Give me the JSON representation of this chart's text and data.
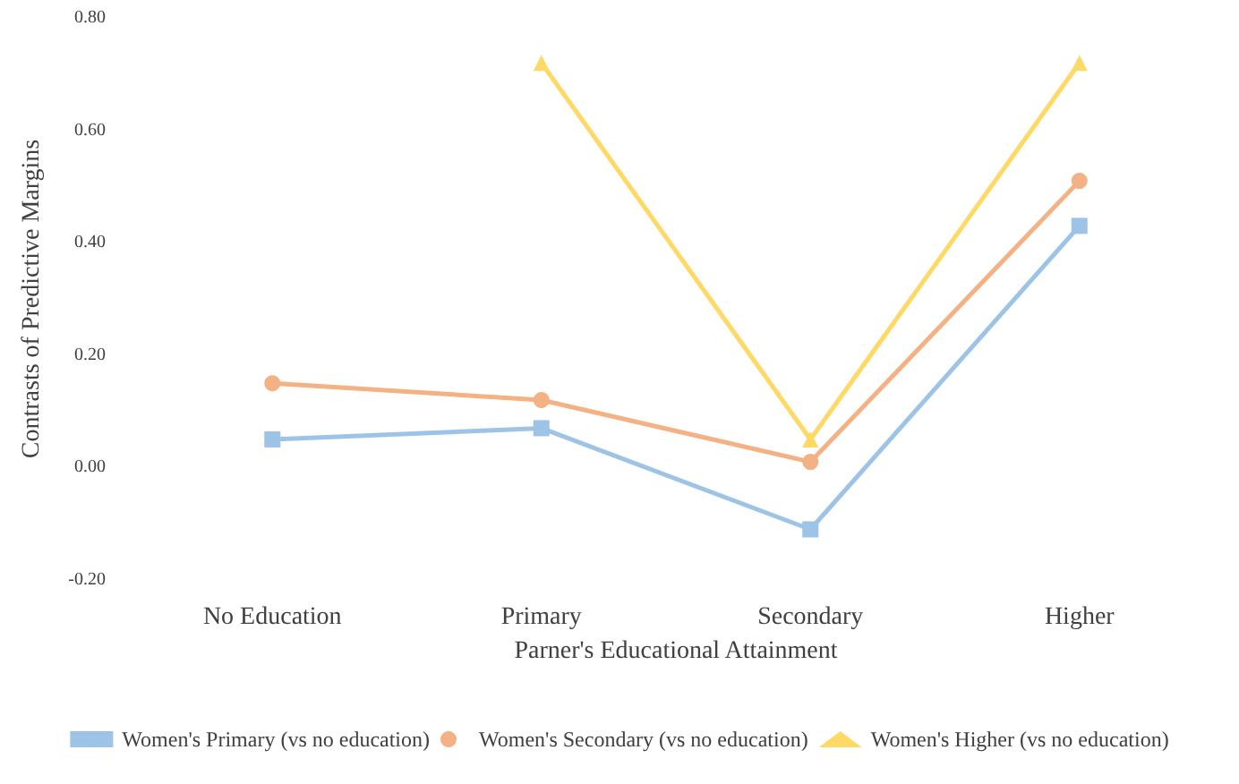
{
  "chart_data": {
    "type": "line",
    "xlabel": "Parner's Educational Attainment",
    "ylabel": "Contrasts of Predictive Margins",
    "categories": [
      "No Education",
      "Primary",
      "Secondary",
      "Higher"
    ],
    "series": [
      {
        "name": "Women's Primary (vs no education)",
        "color": "#9dc3e6",
        "marker": "square",
        "values": [
          0.05,
          0.07,
          -0.11,
          0.43
        ]
      },
      {
        "name": "Women's Secondary (vs no education)",
        "color": "#f4b183",
        "marker": "circle",
        "values": [
          0.15,
          0.12,
          0.01,
          0.51
        ]
      },
      {
        "name": "Women's Higher (vs no education)",
        "color": "#ffd966",
        "marker": "triangle",
        "values": [
          null,
          0.72,
          0.05,
          0.72
        ]
      }
    ],
    "ylim": [
      -0.2,
      0.8
    ],
    "yticks": [
      {
        "value": -0.2,
        "label": "-0.20"
      },
      {
        "value": 0,
        "label": "0.00"
      },
      {
        "value": 0.2,
        "label": "0.20"
      },
      {
        "value": 0.4,
        "label": "0.40"
      },
      {
        "value": 0.6,
        "label": "0.60"
      },
      {
        "value": 0.8,
        "label": "0.80"
      }
    ],
    "grid": false,
    "legend": "bottom",
    "line_style": "solid"
  }
}
